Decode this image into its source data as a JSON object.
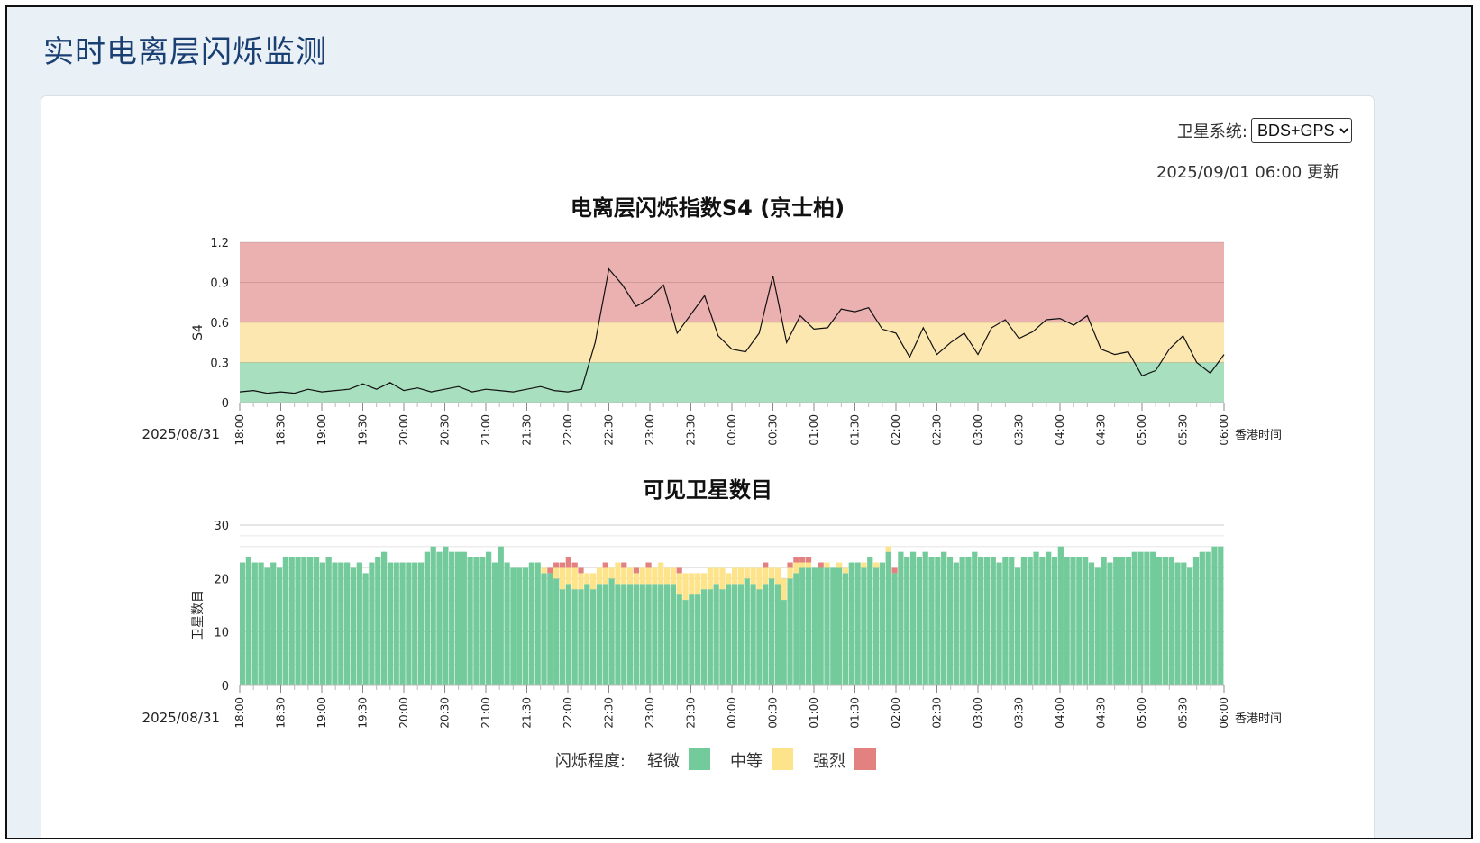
{
  "page": {
    "title": "实时电离层闪烁监测"
  },
  "controls": {
    "system_label": "卫星系统:",
    "system_value": "BDS+GPS",
    "updated": "2025/09/01 06:00 更新"
  },
  "colors": {
    "weak": "#73ca9a",
    "moderate": "#fde48a",
    "strong": "#e38080",
    "band_weak": "#a8dfbf",
    "band_moderate": "#fde7b0",
    "band_strong": "#ebb0b0",
    "title": "#1a3f73"
  },
  "legend": {
    "label": "闪烁程度:",
    "items": [
      {
        "name": "轻微",
        "color": "#73ca9a"
      },
      {
        "name": "中等",
        "color": "#fde48a"
      },
      {
        "name": "强烈",
        "color": "#e38080"
      }
    ]
  },
  "chart_data": [
    {
      "type": "line",
      "title": "电离层闪烁指数S4 (京士柏)",
      "ylabel": "S4",
      "xlabel": "香港时间",
      "date_label": "2025/08/31",
      "ylim": [
        0,
        1.2
      ],
      "yticks": [
        "0",
        "0.3",
        "0.6",
        "0.9",
        "1.2"
      ],
      "xticks": [
        "18:00",
        "18:30",
        "19:00",
        "19:30",
        "20:00",
        "20:30",
        "21:00",
        "21:30",
        "22:00",
        "22:30",
        "23:00",
        "23:30",
        "00:00",
        "00:30",
        "01:00",
        "01:30",
        "02:00",
        "02:30",
        "03:00",
        "03:30",
        "04:00",
        "04:30",
        "05:00",
        "05:30",
        "06:00"
      ],
      "bands": [
        {
          "from": 0,
          "to": 0.3,
          "level": "轻微"
        },
        {
          "from": 0.3,
          "to": 0.6,
          "level": "中等"
        },
        {
          "from": 0.6,
          "to": 1.2,
          "level": "强烈"
        }
      ],
      "x_start": "2025-08-31 18:00",
      "x_end": "2025-09-01 06:00",
      "series": [
        {
          "points": [
            [
              "2025-08-31 18:00",
              0.08
            ],
            [
              "2025-08-31 18:10",
              0.09
            ],
            [
              "2025-08-31 18:20",
              0.07
            ],
            [
              "2025-08-31 18:30",
              0.08
            ],
            [
              "2025-08-31 18:40",
              0.07
            ],
            [
              "2025-08-31 18:50",
              0.1
            ],
            [
              "2025-08-31 19:00",
              0.08
            ],
            [
              "2025-08-31 19:10",
              0.09
            ],
            [
              "2025-08-31 19:20",
              0.1
            ],
            [
              "2025-08-31 19:30",
              0.14
            ],
            [
              "2025-08-31 19:40",
              0.1
            ],
            [
              "2025-08-31 19:50",
              0.15
            ],
            [
              "2025-08-31 20:00",
              0.09
            ],
            [
              "2025-08-31 20:10",
              0.11
            ],
            [
              "2025-08-31 20:20",
              0.08
            ],
            [
              "2025-08-31 20:30",
              0.1
            ],
            [
              "2025-08-31 20:40",
              0.12
            ],
            [
              "2025-08-31 20:50",
              0.08
            ],
            [
              "2025-08-31 21:00",
              0.1
            ],
            [
              "2025-08-31 21:10",
              0.09
            ],
            [
              "2025-08-31 21:20",
              0.08
            ],
            [
              "2025-08-31 21:30",
              0.1
            ],
            [
              "2025-08-31 21:40",
              0.12
            ],
            [
              "2025-08-31 21:50",
              0.09
            ],
            [
              "2025-08-31 22:00",
              0.08
            ],
            [
              "2025-08-31 22:10",
              0.1
            ],
            [
              "2025-08-31 22:20",
              0.45
            ],
            [
              "2025-08-31 22:30",
              1.0
            ],
            [
              "2025-08-31 22:40",
              0.88
            ],
            [
              "2025-08-31 22:50",
              0.72
            ],
            [
              "2025-08-31 23:00",
              0.78
            ],
            [
              "2025-08-31 23:10",
              0.88
            ],
            [
              "2025-08-31 23:20",
              0.52
            ],
            [
              "2025-08-31 23:30",
              0.66
            ],
            [
              "2025-08-31 23:40",
              0.8
            ],
            [
              "2025-08-31 23:50",
              0.5
            ],
            [
              "2025-09-01 00:00",
              0.4
            ],
            [
              "2025-09-01 00:10",
              0.38
            ],
            [
              "2025-09-01 00:20",
              0.52
            ],
            [
              "2025-09-01 00:30",
              0.95
            ],
            [
              "2025-09-01 00:40",
              0.45
            ],
            [
              "2025-09-01 00:50",
              0.65
            ],
            [
              "2025-09-01 01:00",
              0.55
            ],
            [
              "2025-09-01 01:10",
              0.56
            ],
            [
              "2025-09-01 01:20",
              0.7
            ],
            [
              "2025-09-01 01:30",
              0.68
            ],
            [
              "2025-09-01 01:40",
              0.71
            ],
            [
              "2025-09-01 01:50",
              0.55
            ],
            [
              "2025-09-01 02:00",
              0.52
            ],
            [
              "2025-09-01 02:10",
              0.34
            ],
            [
              "2025-09-01 02:20",
              0.56
            ],
            [
              "2025-09-01 02:30",
              0.36
            ],
            [
              "2025-09-01 02:40",
              0.45
            ],
            [
              "2025-09-01 02:50",
              0.52
            ],
            [
              "2025-09-01 03:00",
              0.36
            ],
            [
              "2025-09-01 03:10",
              0.56
            ],
            [
              "2025-09-01 03:20",
              0.62
            ],
            [
              "2025-09-01 03:30",
              0.48
            ],
            [
              "2025-09-01 03:40",
              0.53
            ],
            [
              "2025-09-01 03:50",
              0.62
            ],
            [
              "2025-09-01 04:00",
              0.63
            ],
            [
              "2025-09-01 04:10",
              0.58
            ],
            [
              "2025-09-01 04:20",
              0.65
            ],
            [
              "2025-09-01 04:30",
              0.4
            ],
            [
              "2025-09-01 04:40",
              0.36
            ],
            [
              "2025-09-01 04:50",
              0.38
            ],
            [
              "2025-09-01 05:00",
              0.2
            ],
            [
              "2025-09-01 05:10",
              0.24
            ],
            [
              "2025-09-01 05:20",
              0.4
            ],
            [
              "2025-09-01 05:30",
              0.5
            ],
            [
              "2025-09-01 05:40",
              0.3
            ],
            [
              "2025-09-01 05:50",
              0.22
            ],
            [
              "2025-09-01 06:00",
              0.36
            ]
          ]
        }
      ]
    },
    {
      "type": "bar",
      "stacked": true,
      "title": "可见卫星数目",
      "ylabel": "卫星数目",
      "xlabel": "香港时间",
      "date_label": "2025/08/31",
      "ylim": [
        0,
        30
      ],
      "yticks": [
        "0",
        "10",
        "20",
        "30"
      ],
      "xticks": [
        "18:00",
        "18:30",
        "19:00",
        "19:30",
        "20:00",
        "20:30",
        "21:00",
        "21:30",
        "22:00",
        "22:30",
        "23:00",
        "23:30",
        "00:00",
        "00:30",
        "01:00",
        "01:30",
        "02:00",
        "02:30",
        "03:00",
        "03:30",
        "04:00",
        "04:30",
        "05:00",
        "05:30",
        "06:00"
      ],
      "x_start": "2025-08-31 18:00",
      "x_end": "2025-09-01 06:00",
      "series": [
        {
          "name": "轻微",
          "values": [
            23,
            24,
            23,
            23,
            22,
            23,
            22,
            24,
            24,
            24,
            24,
            24,
            24,
            23,
            24,
            23,
            23,
            23,
            22,
            23,
            21,
            23,
            24,
            25,
            23,
            23,
            23,
            23,
            23,
            23,
            25,
            26,
            25,
            26,
            25,
            25,
            25,
            24,
            24,
            24,
            25,
            23,
            26,
            23,
            22,
            22,
            22,
            23,
            23,
            21,
            21,
            20,
            18,
            19,
            18,
            18,
            19,
            18,
            19,
            19,
            20,
            19,
            19,
            19,
            19,
            19,
            19,
            19,
            19,
            19,
            19,
            17,
            16,
            17,
            17,
            18,
            18,
            19,
            18,
            19,
            19,
            19,
            20,
            19,
            18,
            19,
            20,
            19,
            16,
            20,
            21,
            22,
            22,
            22,
            22,
            22,
            22,
            22,
            21,
            23,
            23,
            22,
            24,
            22,
            23,
            25,
            21,
            25,
            24,
            25,
            24,
            25,
            24,
            24,
            25,
            24,
            23,
            24,
            24,
            25,
            24,
            24,
            24,
            23,
            24,
            24,
            22,
            24,
            24,
            25,
            24,
            25,
            24,
            26,
            24,
            24,
            24,
            24,
            23,
            22,
            24,
            23,
            24,
            24,
            24,
            25,
            25,
            25,
            25,
            24,
            24,
            24,
            23,
            23,
            22,
            24,
            25,
            25,
            26,
            26
          ]
        },
        {
          "name": "中等",
          "values": [
            0,
            0,
            0,
            0,
            0,
            0,
            0,
            0,
            0,
            0,
            0,
            0,
            0,
            0,
            0,
            0,
            0,
            0,
            0,
            0,
            0,
            0,
            0,
            0,
            0,
            0,
            0,
            0,
            0,
            0,
            0,
            0,
            0,
            0,
            0,
            0,
            0,
            0,
            0,
            0,
            0,
            0,
            0,
            0,
            0,
            0,
            0,
            0,
            0,
            1,
            0,
            2,
            4,
            3,
            4,
            3,
            2,
            3,
            3,
            3,
            2,
            4,
            3,
            3,
            2,
            3,
            3,
            3,
            4,
            3,
            3,
            4,
            5,
            4,
            4,
            3,
            4,
            3,
            4,
            2,
            3,
            3,
            2,
            3,
            4,
            3,
            2,
            3,
            4,
            2,
            2,
            1,
            1,
            0,
            0,
            1,
            0,
            1,
            1,
            0,
            0,
            1,
            0,
            1,
            0,
            1,
            0,
            0,
            0,
            0,
            0,
            0,
            0,
            0,
            0,
            0,
            0,
            0,
            0,
            0,
            0,
            0,
            0,
            0,
            0,
            0,
            0,
            0,
            0,
            0,
            0,
            0,
            0,
            0,
            0,
            0,
            0,
            0,
            0,
            0,
            0,
            0,
            0,
            0,
            0,
            0,
            0,
            0,
            0,
            0,
            0,
            0,
            0,
            0,
            0,
            0,
            0,
            0,
            0,
            0
          ]
        },
        {
          "name": "强烈",
          "values": [
            0,
            0,
            0,
            0,
            0,
            0,
            0,
            0,
            0,
            0,
            0,
            0,
            0,
            0,
            0,
            0,
            0,
            0,
            0,
            0,
            0,
            0,
            0,
            0,
            0,
            0,
            0,
            0,
            0,
            0,
            0,
            0,
            0,
            0,
            0,
            0,
            0,
            0,
            0,
            0,
            0,
            0,
            0,
            0,
            0,
            0,
            0,
            0,
            0,
            0,
            1,
            1,
            1,
            2,
            1,
            1,
            0,
            0,
            0,
            1,
            0,
            0,
            1,
            0,
            1,
            0,
            1,
            0,
            0,
            0,
            0,
            1,
            0,
            0,
            0,
            0,
            0,
            0,
            0,
            0,
            0,
            0,
            0,
            0,
            0,
            1,
            0,
            0,
            0,
            1,
            1,
            1,
            1,
            0,
            1,
            0,
            0,
            0,
            0,
            0,
            0,
            0,
            0,
            0,
            0,
            0,
            1,
            0,
            0,
            0,
            0,
            0,
            0,
            0,
            0,
            0,
            0,
            0,
            0,
            0,
            0,
            0,
            0,
            0,
            0,
            0,
            0,
            0,
            0,
            0,
            0,
            0,
            0,
            0,
            0,
            0,
            0,
            0,
            0,
            0,
            0,
            0,
            0,
            0,
            0,
            0,
            0,
            0,
            0,
            0,
            0,
            0,
            0,
            0,
            0,
            0,
            0,
            0,
            0,
            0
          ]
        }
      ]
    }
  ]
}
